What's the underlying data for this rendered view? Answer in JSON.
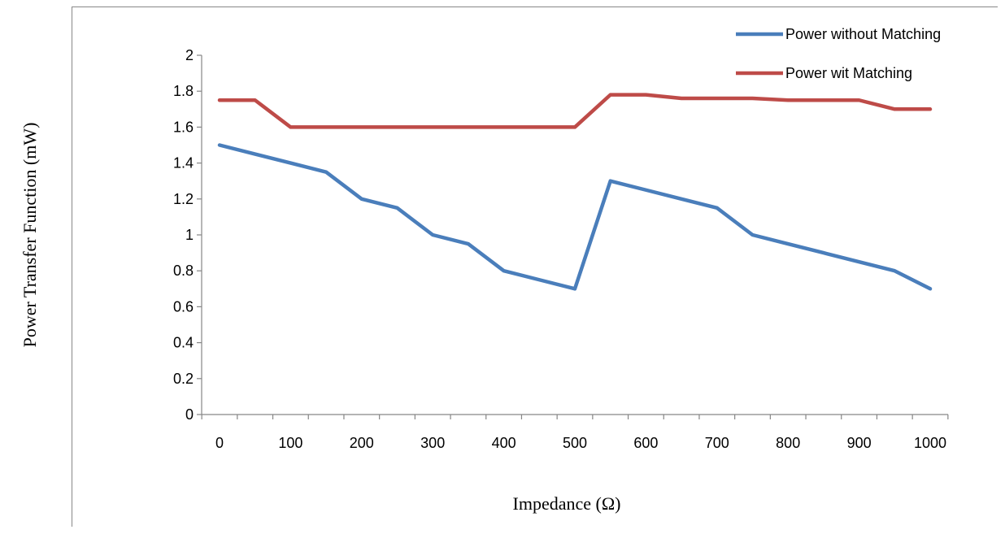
{
  "chart_data": {
    "type": "line",
    "xlabel": "Impedance (Ω)",
    "ylabel": "Power Transfer Function (mW)",
    "x": [
      0,
      50,
      100,
      150,
      200,
      250,
      300,
      350,
      400,
      450,
      500,
      550,
      600,
      650,
      700,
      750,
      800,
      850,
      900,
      950,
      1000
    ],
    "x_tick_labels": [
      "0",
      "100",
      "200",
      "300",
      "400",
      "500",
      "600",
      "700",
      "800",
      "900",
      "1000"
    ],
    "y_tick_labels": [
      "0",
      "0.2",
      "0.4",
      "0.6",
      "0.8",
      "1",
      "1.2",
      "1.4",
      "1.6",
      "1.8",
      "2"
    ],
    "ylim": [
      0,
      2
    ],
    "grid": false,
    "legend_position": "top-right",
    "series": [
      {
        "name": "Power without Matching",
        "color": "#4A7EBB",
        "values": [
          1.5,
          1.45,
          1.4,
          1.35,
          1.2,
          1.15,
          1.0,
          0.95,
          0.8,
          0.75,
          0.7,
          1.3,
          1.25,
          1.2,
          1.15,
          1.0,
          0.95,
          0.9,
          0.85,
          0.8,
          0.7
        ]
      },
      {
        "name": "Power wit Matching",
        "color": "#BE4B48",
        "values": [
          1.75,
          1.75,
          1.6,
          1.6,
          1.6,
          1.6,
          1.6,
          1.6,
          1.6,
          1.6,
          1.6,
          1.78,
          1.78,
          1.76,
          1.76,
          1.76,
          1.75,
          1.75,
          1.75,
          1.7,
          1.7
        ]
      }
    ]
  }
}
